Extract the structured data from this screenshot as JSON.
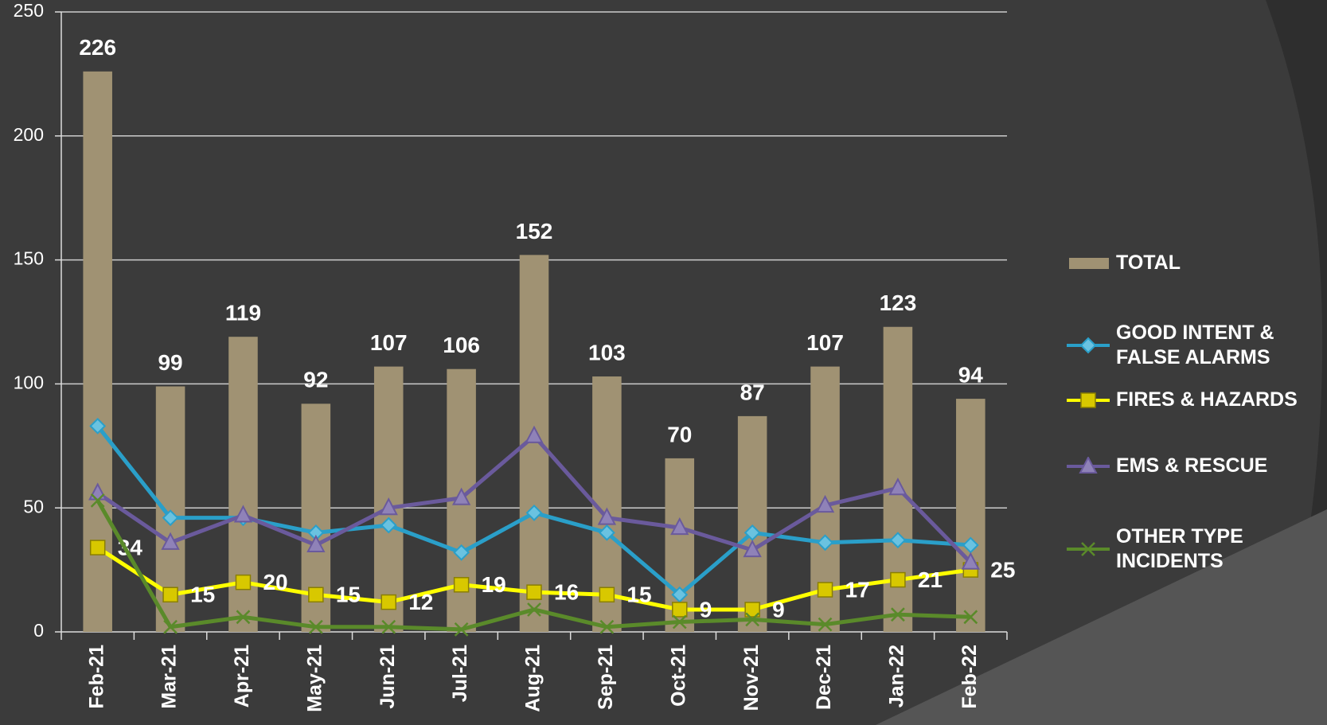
{
  "chart_data": {
    "type": "bar_line",
    "categories": [
      "Feb-21",
      "Mar-21",
      "Apr-21",
      "May-21",
      "Jun-21",
      "Jul-21",
      "Aug-21",
      "Sep-21",
      "Oct-21",
      "Nov-21",
      "Dec-21",
      "Jan-22",
      "Feb-22"
    ],
    "ylim": [
      0,
      250
    ],
    "yticks": [
      0,
      50,
      100,
      150,
      200,
      250
    ],
    "grid": true,
    "legend": "right",
    "series": [
      {
        "name": "TOTAL",
        "type": "bar",
        "color": "#a09273",
        "data_labels": true,
        "values": [
          226,
          99,
          119,
          92,
          107,
          106,
          152,
          103,
          70,
          87,
          107,
          123,
          94
        ]
      },
      {
        "name": "GOOD INTENT & FALSE ALARMS",
        "type": "line",
        "marker": "diamond",
        "color": "#2a9fc9",
        "data_labels": false,
        "values": [
          83,
          46,
          46,
          40,
          43,
          32,
          48,
          40,
          15,
          40,
          36,
          37,
          35
        ]
      },
      {
        "name": "FIRES & HAZARDS",
        "type": "line",
        "marker": "square",
        "color": "#ffff00",
        "data_labels": true,
        "values": [
          34,
          15,
          20,
          15,
          12,
          19,
          16,
          15,
          9,
          9,
          17,
          21,
          25
        ]
      },
      {
        "name": "EMS & RESCUE",
        "type": "line",
        "marker": "triangle",
        "color": "#6a5a9c",
        "data_labels": false,
        "values": [
          56,
          36,
          47,
          35,
          50,
          54,
          79,
          46,
          42,
          33,
          51,
          58,
          28
        ]
      },
      {
        "name": "OTHER TYPE INCIDENTS",
        "type": "line",
        "marker": "x",
        "color": "#5a8a2a",
        "data_labels": false,
        "values": [
          53,
          2,
          6,
          2,
          2,
          1,
          9,
          2,
          4,
          5,
          3,
          7,
          6
        ]
      }
    ]
  }
}
